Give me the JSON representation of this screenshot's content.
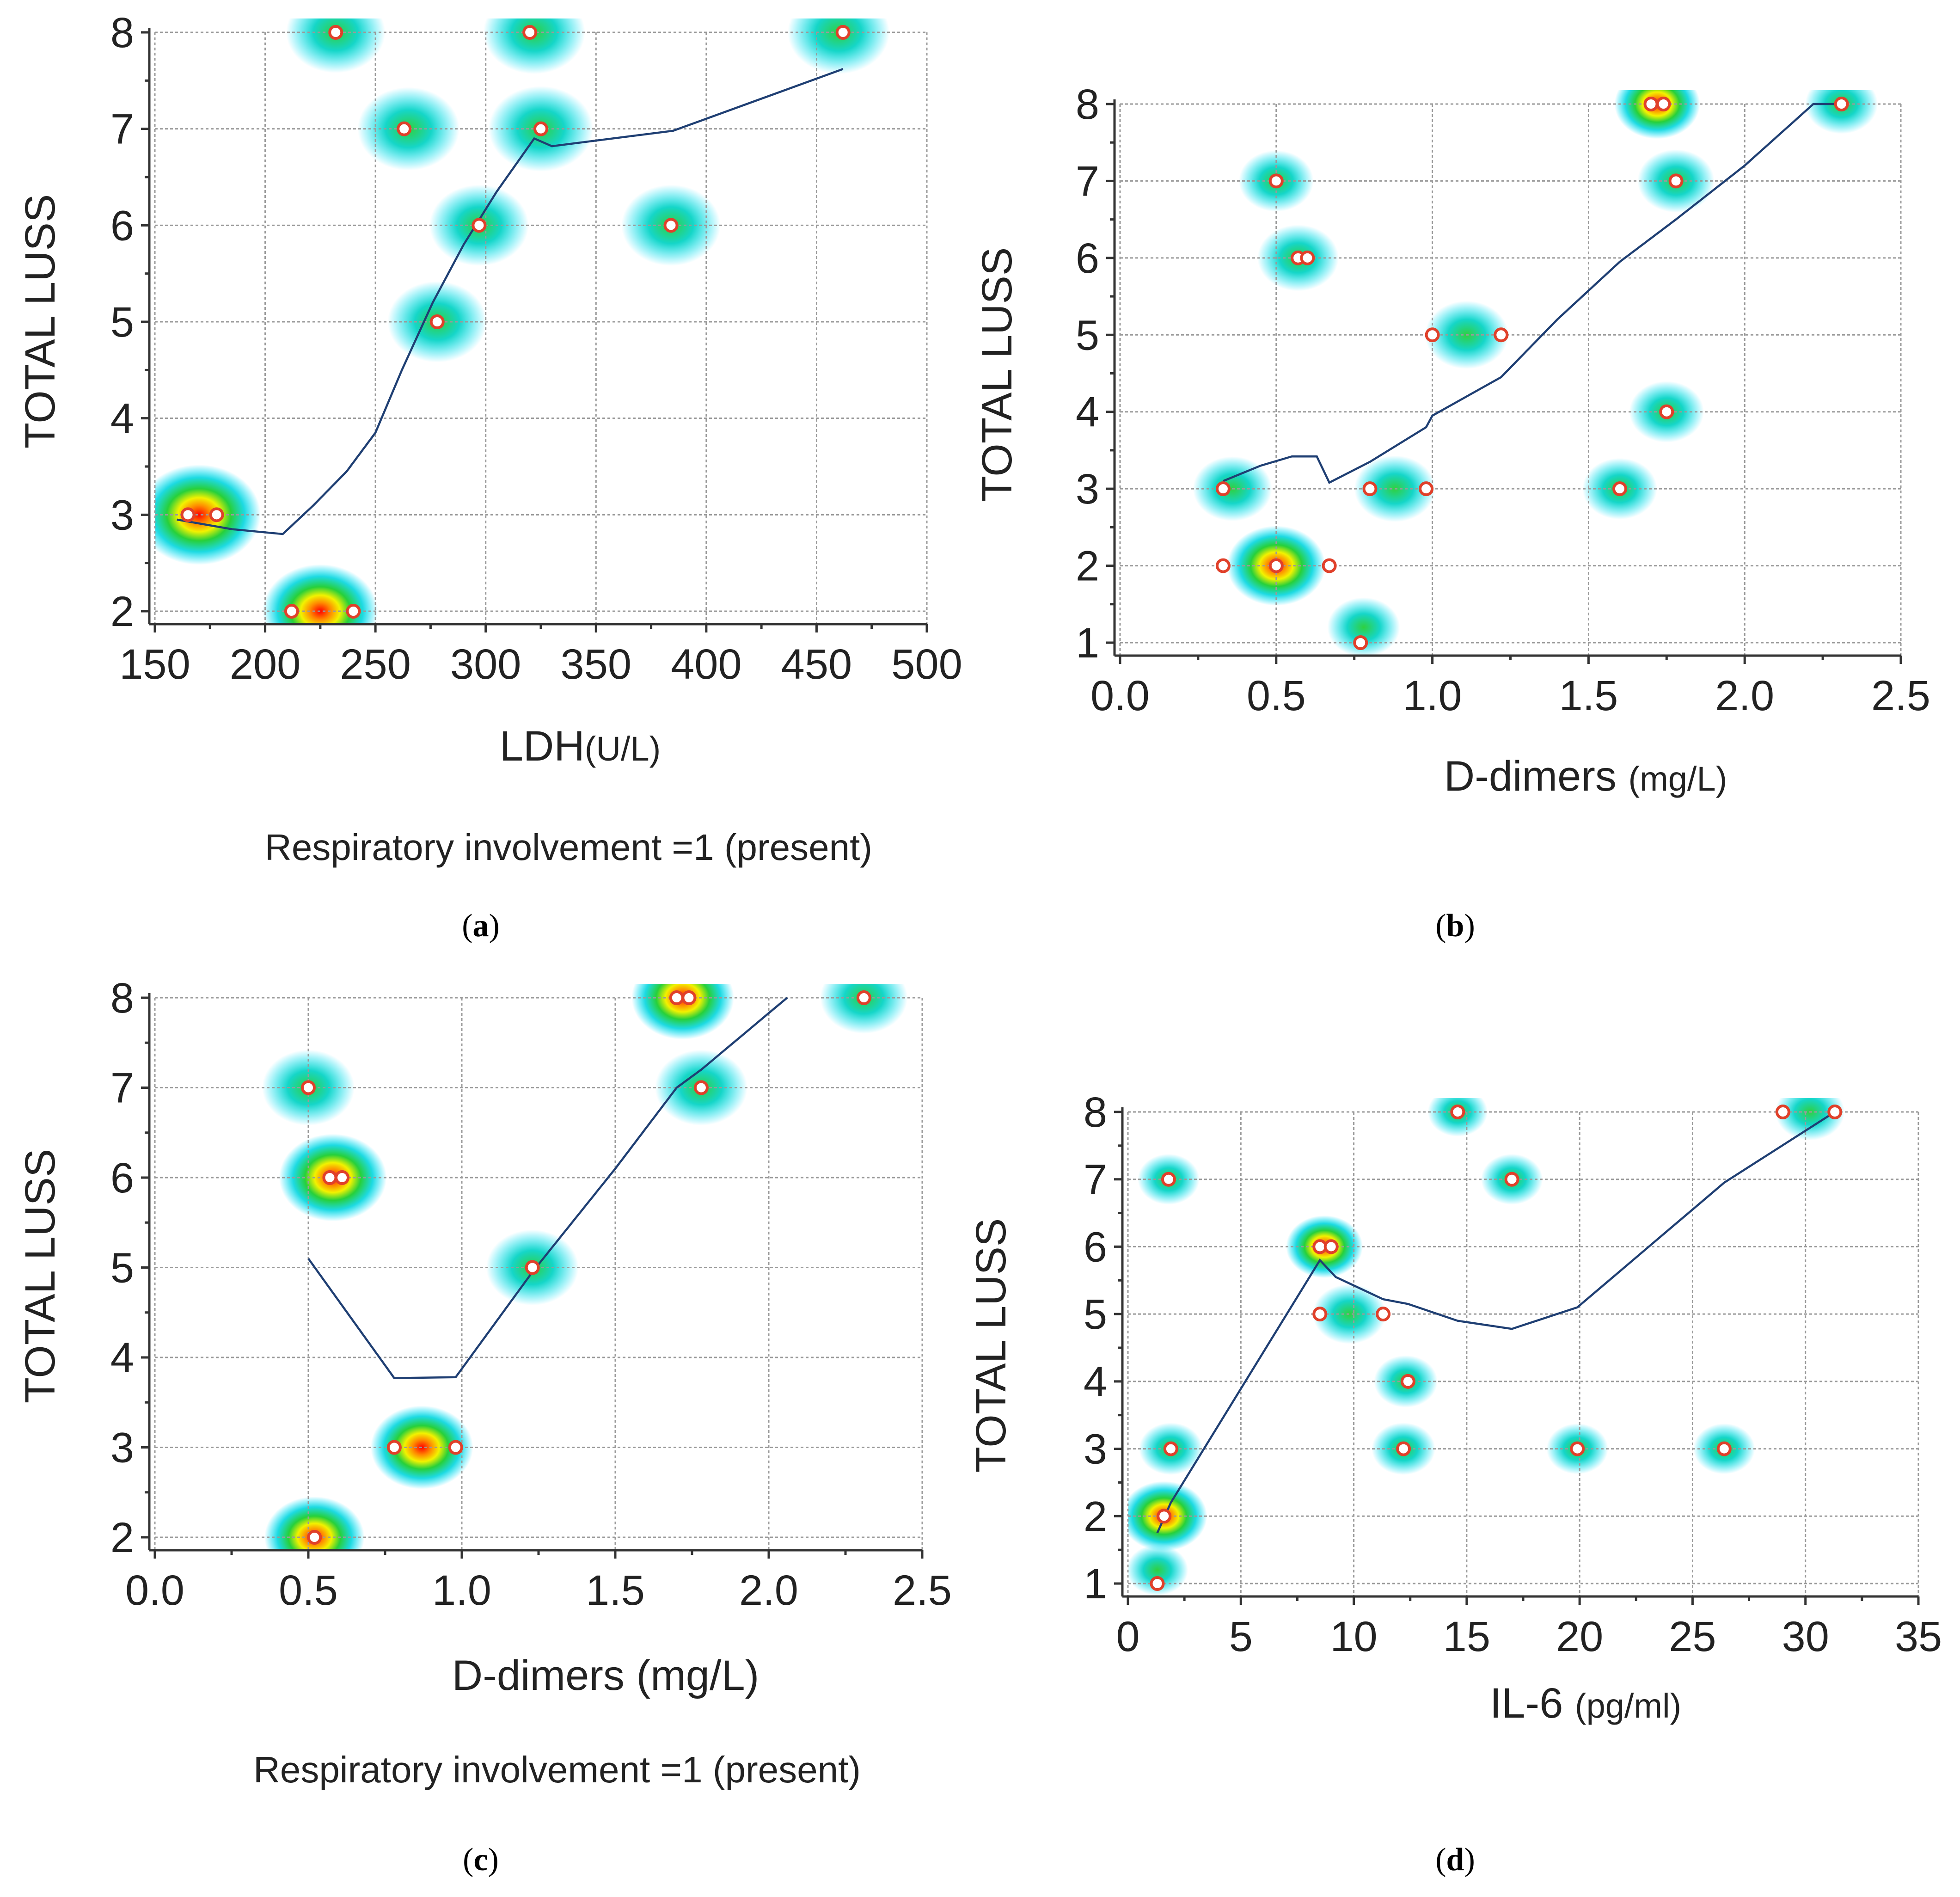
{
  "chart_data": [
    {
      "type": "scatter",
      "panel": "a",
      "caption": "a",
      "xlabel": "LDH",
      "xunit": "(U/L)",
      "ylabel": "TOTAL LUSS",
      "note": "Respiratory involvement =1 (present)",
      "xlim": [
        150,
        500
      ],
      "ylim": [
        2,
        8
      ],
      "xticks": [
        150,
        200,
        250,
        300,
        350,
        400,
        450,
        500
      ],
      "yticks": [
        2,
        3,
        4,
        5,
        6,
        7,
        8
      ],
      "grid": true,
      "density_background": true,
      "points": [
        {
          "x": 165,
          "y": 3
        },
        {
          "x": 178,
          "y": 3
        },
        {
          "x": 212,
          "y": 2
        },
        {
          "x": 240,
          "y": 2
        },
        {
          "x": 232,
          "y": 8
        },
        {
          "x": 320,
          "y": 8
        },
        {
          "x": 462,
          "y": 8
        },
        {
          "x": 263,
          "y": 7
        },
        {
          "x": 325,
          "y": 7
        },
        {
          "x": 297,
          "y": 6
        },
        {
          "x": 384,
          "y": 6
        },
        {
          "x": 278,
          "y": 5
        }
      ],
      "density": [
        {
          "x": 170,
          "y": 3,
          "w": 1.0
        },
        {
          "x": 225,
          "y": 2,
          "w": 0.85
        },
        {
          "x": 232,
          "y": 8,
          "w": 0.55
        },
        {
          "x": 322,
          "y": 8,
          "w": 0.6
        },
        {
          "x": 460,
          "y": 8,
          "w": 0.6
        },
        {
          "x": 265,
          "y": 7,
          "w": 0.6
        },
        {
          "x": 325,
          "y": 7,
          "w": 0.65
        },
        {
          "x": 297,
          "y": 6,
          "w": 0.55
        },
        {
          "x": 384,
          "y": 6,
          "w": 0.55
        },
        {
          "x": 278,
          "y": 5,
          "w": 0.55
        }
      ],
      "trend": [
        {
          "x": 160,
          "y": 2.95
        },
        {
          "x": 185,
          "y": 2.85
        },
        {
          "x": 208,
          "y": 2.8
        },
        {
          "x": 222,
          "y": 3.1
        },
        {
          "x": 237,
          "y": 3.45
        },
        {
          "x": 250,
          "y": 3.85
        },
        {
          "x": 262,
          "y": 4.5
        },
        {
          "x": 276,
          "y": 5.2
        },
        {
          "x": 290,
          "y": 5.8
        },
        {
          "x": 305,
          "y": 6.35
        },
        {
          "x": 322,
          "y": 6.9
        },
        {
          "x": 330,
          "y": 6.82
        },
        {
          "x": 385,
          "y": 6.98
        },
        {
          "x": 462,
          "y": 7.62
        }
      ]
    },
    {
      "type": "scatter",
      "panel": "b",
      "caption": "b",
      "xlabel": "D-dimers",
      "xunit": "(mg/L)",
      "ylabel": "TOTAL LUSS",
      "note": "",
      "xlim": [
        0.0,
        2.5
      ],
      "ylim": [
        1,
        8
      ],
      "xticks": [
        "0.0",
        "0.5",
        "1.0",
        "1.5",
        "2.0",
        "2.5"
      ],
      "yticks": [
        1,
        2,
        3,
        4,
        5,
        6,
        7,
        8
      ],
      "grid": true,
      "density_background": true,
      "points": [
        {
          "x": 0.33,
          "y": 3
        },
        {
          "x": 0.33,
          "y": 2
        },
        {
          "x": 0.5,
          "y": 2
        },
        {
          "x": 0.67,
          "y": 2
        },
        {
          "x": 0.5,
          "y": 7
        },
        {
          "x": 0.57,
          "y": 6
        },
        {
          "x": 0.6,
          "y": 6
        },
        {
          "x": 0.77,
          "y": 1
        },
        {
          "x": 0.8,
          "y": 3
        },
        {
          "x": 0.98,
          "y": 3
        },
        {
          "x": 1.0,
          "y": 5
        },
        {
          "x": 1.22,
          "y": 5
        },
        {
          "x": 1.6,
          "y": 3
        },
        {
          "x": 1.75,
          "y": 4
        },
        {
          "x": 1.7,
          "y": 8
        },
        {
          "x": 1.74,
          "y": 8
        },
        {
          "x": 1.78,
          "y": 7
        },
        {
          "x": 2.31,
          "y": 8
        }
      ],
      "density": [
        {
          "x": 0.5,
          "y": 2,
          "w": 1.0
        },
        {
          "x": 0.36,
          "y": 3,
          "w": 0.55
        },
        {
          "x": 0.88,
          "y": 3,
          "w": 0.6
        },
        {
          "x": 0.57,
          "y": 6,
          "w": 0.6
        },
        {
          "x": 0.5,
          "y": 7,
          "w": 0.45
        },
        {
          "x": 1.11,
          "y": 5,
          "w": 0.65
        },
        {
          "x": 1.6,
          "y": 3,
          "w": 0.45
        },
        {
          "x": 1.75,
          "y": 4,
          "w": 0.45
        },
        {
          "x": 1.72,
          "y": 8,
          "w": 0.7
        },
        {
          "x": 1.78,
          "y": 7,
          "w": 0.5
        },
        {
          "x": 2.31,
          "y": 8,
          "w": 0.4
        },
        {
          "x": 0.78,
          "y": 1.2,
          "w": 0.4
        }
      ],
      "trend": [
        {
          "x": 0.33,
          "y": 3.1
        },
        {
          "x": 0.45,
          "y": 3.3
        },
        {
          "x": 0.55,
          "y": 3.42
        },
        {
          "x": 0.63,
          "y": 3.42
        },
        {
          "x": 0.67,
          "y": 3.08
        },
        {
          "x": 0.8,
          "y": 3.35
        },
        {
          "x": 0.98,
          "y": 3.8
        },
        {
          "x": 1.0,
          "y": 3.95
        },
        {
          "x": 1.22,
          "y": 4.45
        },
        {
          "x": 1.4,
          "y": 5.2
        },
        {
          "x": 1.6,
          "y": 5.95
        },
        {
          "x": 1.78,
          "y": 6.5
        },
        {
          "x": 2.0,
          "y": 7.2
        },
        {
          "x": 2.22,
          "y": 8.0
        },
        {
          "x": 2.31,
          "y": 8.0
        }
      ]
    },
    {
      "type": "scatter",
      "panel": "c",
      "caption": "c",
      "xlabel": "D-dimers",
      "xunit": "(mg/L)",
      "ylabel": "TOTAL LUSS",
      "note": "Respiratory involvement =1 (present)",
      "xlim": [
        0.0,
        2.5
      ],
      "ylim": [
        2,
        8
      ],
      "xticks": [
        "0.0",
        "0.5",
        "1.0",
        "1.5",
        "2.0",
        "2.5"
      ],
      "yticks": [
        2,
        3,
        4,
        5,
        6,
        7,
        8
      ],
      "grid": true,
      "density_background": true,
      "points": [
        {
          "x": 0.5,
          "y": 7
        },
        {
          "x": 0.57,
          "y": 6
        },
        {
          "x": 0.61,
          "y": 6
        },
        {
          "x": 0.52,
          "y": 2
        },
        {
          "x": 0.78,
          "y": 3
        },
        {
          "x": 0.98,
          "y": 3
        },
        {
          "x": 1.23,
          "y": 5
        },
        {
          "x": 1.7,
          "y": 8
        },
        {
          "x": 1.74,
          "y": 8
        },
        {
          "x": 1.78,
          "y": 7
        },
        {
          "x": 2.31,
          "y": 8
        }
      ],
      "density": [
        {
          "x": 0.5,
          "y": 7,
          "w": 0.55
        },
        {
          "x": 0.58,
          "y": 6,
          "w": 0.85
        },
        {
          "x": 0.52,
          "y": 2,
          "w": 0.7
        },
        {
          "x": 0.87,
          "y": 3,
          "w": 0.75
        },
        {
          "x": 1.23,
          "y": 5,
          "w": 0.55
        },
        {
          "x": 1.72,
          "y": 8,
          "w": 0.75
        },
        {
          "x": 1.78,
          "y": 7,
          "w": 0.55
        },
        {
          "x": 2.31,
          "y": 8,
          "w": 0.45
        }
      ],
      "trend": [
        {
          "x": 0.5,
          "y": 5.1
        },
        {
          "x": 0.78,
          "y": 3.77
        },
        {
          "x": 0.98,
          "y": 3.78
        },
        {
          "x": 1.23,
          "y": 4.95
        },
        {
          "x": 1.5,
          "y": 6.1
        },
        {
          "x": 1.7,
          "y": 7.0
        },
        {
          "x": 1.78,
          "y": 7.2
        },
        {
          "x": 2.06,
          "y": 8.0
        }
      ]
    },
    {
      "type": "scatter",
      "panel": "d",
      "caption": "d",
      "xlabel": "IL-6",
      "xunit": "(pg/ml)",
      "ylabel": "TOTAL LUSS",
      "note": "",
      "xlim": [
        0,
        35
      ],
      "ylim": [
        1,
        8
      ],
      "xticks": [
        0,
        5,
        10,
        15,
        20,
        25,
        30,
        35
      ],
      "yticks": [
        1,
        2,
        3,
        4,
        5,
        6,
        7,
        8
      ],
      "grid": true,
      "density_background": true,
      "points": [
        {
          "x": 1.3,
          "y": 1
        },
        {
          "x": 1.6,
          "y": 2
        },
        {
          "x": 1.8,
          "y": 7
        },
        {
          "x": 1.9,
          "y": 3
        },
        {
          "x": 8.5,
          "y": 6
        },
        {
          "x": 9.0,
          "y": 6
        },
        {
          "x": 8.5,
          "y": 5
        },
        {
          "x": 11.3,
          "y": 5
        },
        {
          "x": 12.4,
          "y": 4
        },
        {
          "x": 12.2,
          "y": 3
        },
        {
          "x": 14.6,
          "y": 8
        },
        {
          "x": 17.0,
          "y": 7
        },
        {
          "x": 19.9,
          "y": 3
        },
        {
          "x": 26.4,
          "y": 3
        },
        {
          "x": 29.0,
          "y": 8
        },
        {
          "x": 31.3,
          "y": 8
        }
      ],
      "density": [
        {
          "x": 1.6,
          "y": 2,
          "w": 1.0
        },
        {
          "x": 1.8,
          "y": 7,
          "w": 0.35
        },
        {
          "x": 1.9,
          "y": 3,
          "w": 0.4
        },
        {
          "x": 8.7,
          "y": 6,
          "w": 0.75
        },
        {
          "x": 9.8,
          "y": 5,
          "w": 0.65
        },
        {
          "x": 12.3,
          "y": 4,
          "w": 0.4
        },
        {
          "x": 12.2,
          "y": 3,
          "w": 0.4
        },
        {
          "x": 14.6,
          "y": 8,
          "w": 0.3
        },
        {
          "x": 17.0,
          "y": 7,
          "w": 0.35
        },
        {
          "x": 19.9,
          "y": 3,
          "w": 0.35
        },
        {
          "x": 26.4,
          "y": 3,
          "w": 0.35
        },
        {
          "x": 30.2,
          "y": 8,
          "w": 0.55
        },
        {
          "x": 1.3,
          "y": 1.2,
          "w": 0.35
        }
      ],
      "trend": [
        {
          "x": 1.3,
          "y": 1.75
        },
        {
          "x": 1.9,
          "y": 2.2
        },
        {
          "x": 8.5,
          "y": 5.8
        },
        {
          "x": 9.2,
          "y": 5.55
        },
        {
          "x": 11.3,
          "y": 5.22
        },
        {
          "x": 12.4,
          "y": 5.15
        },
        {
          "x": 14.6,
          "y": 4.9
        },
        {
          "x": 17.0,
          "y": 4.78
        },
        {
          "x": 19.9,
          "y": 5.1
        },
        {
          "x": 26.4,
          "y": 6.95
        },
        {
          "x": 31.3,
          "y": 8.0
        }
      ]
    }
  ]
}
